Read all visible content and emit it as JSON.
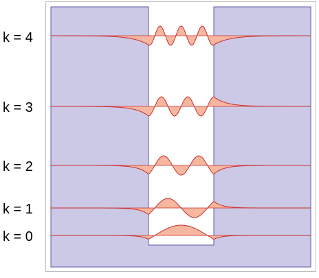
{
  "diagram": {
    "labels": [
      "k = 4",
      "k = 3",
      "k = 2",
      "k = 1",
      "k = 0"
    ],
    "colors": {
      "barrier_fill": "#cbc9e6",
      "barrier_stroke": "#5c5aa8",
      "wave_stroke": "#cc2a2a",
      "wave_fill": "#f5b79f",
      "frame": "#bdbdbd",
      "label": "#000000"
    }
  }
}
